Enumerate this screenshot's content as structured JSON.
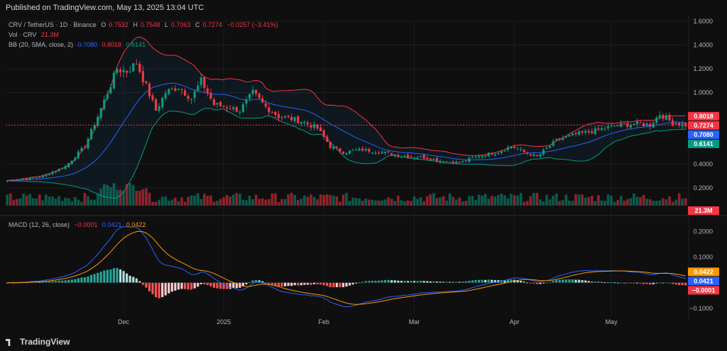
{
  "header": {
    "published": "Published on TradingView.com, May 13, 2025 13:04 UTC"
  },
  "legend": {
    "symbol": "CRV / TetherUS · 1D · Binance",
    "o_label": "O",
    "o": "0.7532",
    "h_label": "H",
    "h": "0.7548",
    "l_label": "L",
    "l": "0.7063",
    "c_label": "C",
    "c": "0.7274",
    "change": "−0.0257 (−3.41%)",
    "vol_label": "Vol · CRV",
    "vol": "21.3M",
    "bb_label": "BB (20, SMA, close, 2)",
    "bb_mid": "0.7080",
    "bb_upper": "0.8018",
    "bb_lower": "0.6141",
    "macd_label": "MACD (12, 26, close)",
    "macd_hist": "−0.0001",
    "macd_line": "0.0421",
    "macd_signal": "0.0422"
  },
  "footer": {
    "brand": "TradingView"
  },
  "colors": {
    "up": "#089981",
    "down": "#f23645",
    "upper_band": "#f23645",
    "middle_band": "#2962ff",
    "lower_band": "#089981",
    "macd": "#2962ff",
    "signal": "#ff9800",
    "grid": "#1e1e1e",
    "text": "#b2b5be"
  },
  "chart_data": {
    "type": "candlestick",
    "x_labels": [
      "Dec",
      "2025",
      "Feb",
      "Mar",
      "Apr",
      "May"
    ],
    "x_label_index": [
      36,
      67,
      98,
      126,
      157,
      187
    ],
    "price_axis": {
      "ticks": [
        "1.6000",
        "1.4000",
        "1.2000",
        "1.0000",
        "0.4000",
        "0.2000"
      ],
      "range": [
        0.05,
        1.6
      ]
    },
    "price_badges": [
      {
        "text": "0.8018",
        "value": 0.8018,
        "bg": "#f23645"
      },
      {
        "text": "0.7274",
        "value": 0.7274,
        "bg": "#f23645"
      },
      {
        "text": "0.7080",
        "value": 0.708,
        "bg": "#2962ff"
      },
      {
        "text": "0.6141",
        "value": 0.6141,
        "bg": "#089981"
      }
    ],
    "volume_badge": "21.3M",
    "macd_axis": {
      "ticks": [
        "0.2000",
        "0.1000",
        "−0.1000"
      ],
      "range": [
        -0.12,
        0.24
      ]
    },
    "macd_badges": [
      {
        "text": "0.0422",
        "value": 0.0422,
        "bg": "#ff9800"
      },
      {
        "text": "0.0421",
        "value": 0.0421,
        "bg": "#2962ff"
      },
      {
        "text": "−0.0001",
        "value": -0.0001,
        "bg": "#f23645"
      }
    ],
    "close_keypoints": [
      [
        0,
        0.26
      ],
      [
        10,
        0.29
      ],
      [
        18,
        0.38
      ],
      [
        24,
        0.55
      ],
      [
        28,
        0.8
      ],
      [
        31,
        1.0
      ],
      [
        34,
        1.2
      ],
      [
        37,
        1.18
      ],
      [
        40,
        1.25
      ],
      [
        43,
        1.05
      ],
      [
        46,
        0.85
      ],
      [
        49,
        1.0
      ],
      [
        53,
        1.05
      ],
      [
        57,
        0.95
      ],
      [
        60,
        1.1
      ],
      [
        64,
        0.9
      ],
      [
        68,
        0.88
      ],
      [
        72,
        0.85
      ],
      [
        76,
        1.0
      ],
      [
        80,
        0.88
      ],
      [
        84,
        0.8
      ],
      [
        88,
        0.78
      ],
      [
        92,
        0.75
      ],
      [
        96,
        0.7
      ],
      [
        100,
        0.55
      ],
      [
        104,
        0.5
      ],
      [
        110,
        0.52
      ],
      [
        116,
        0.5
      ],
      [
        122,
        0.47
      ],
      [
        128,
        0.46
      ],
      [
        134,
        0.43
      ],
      [
        140,
        0.41
      ],
      [
        146,
        0.47
      ],
      [
        152,
        0.5
      ],
      [
        156,
        0.55
      ],
      [
        160,
        0.5
      ],
      [
        164,
        0.46
      ],
      [
        170,
        0.6
      ],
      [
        176,
        0.65
      ],
      [
        182,
        0.68
      ],
      [
        188,
        0.72
      ],
      [
        194,
        0.74
      ],
      [
        199,
        0.73
      ],
      [
        202,
        0.82
      ],
      [
        206,
        0.75
      ],
      [
        210,
        0.7274
      ]
    ],
    "bars": 211
  }
}
